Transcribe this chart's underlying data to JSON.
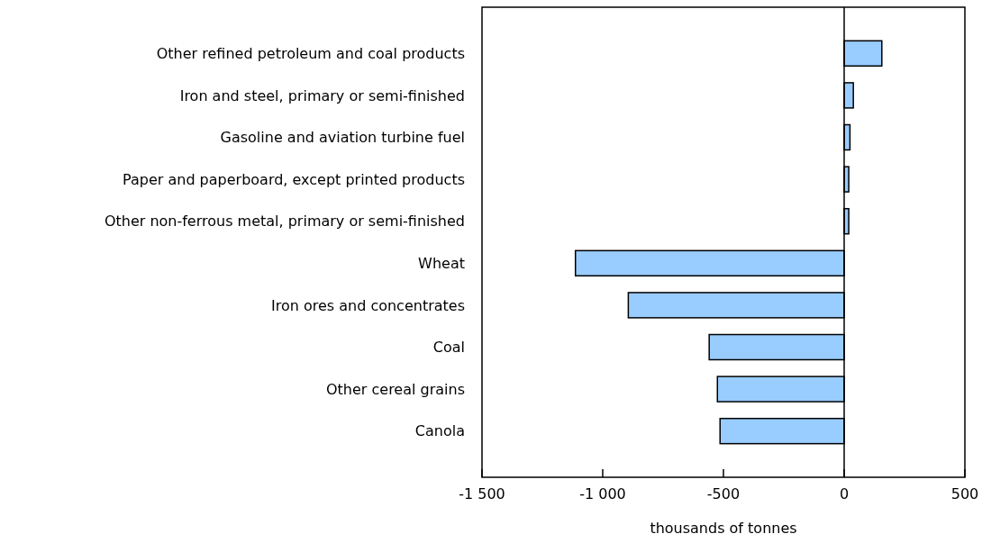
{
  "chart_data": {
    "type": "bar",
    "orientation": "horizontal",
    "xlabel": "thousands of tonnes",
    "categories": [
      "Other refined petroleum and coal products",
      "Iron and steel, primary or semi-finished",
      "Gasoline and aviation turbine fuel",
      "Paper and paperboard, except printed products",
      "Other non-ferrous metal, primary or semi-finished",
      "Wheat",
      "Iron ores and concentrates",
      "Coal",
      "Other cereal grains",
      "Canola"
    ],
    "values": [
      156,
      38,
      24,
      19,
      19,
      -1113,
      -894,
      -559,
      -525,
      -514
    ],
    "color": "#99ccff",
    "xlim": [
      -1500,
      500
    ],
    "xticks": [
      {
        "value": -1500,
        "label": "-1 500"
      },
      {
        "value": -1000,
        "label": "-1 000"
      },
      -500,
      0,
      500
    ],
    "ref_lines": [
      {
        "axis": "x",
        "value": 0
      }
    ]
  }
}
